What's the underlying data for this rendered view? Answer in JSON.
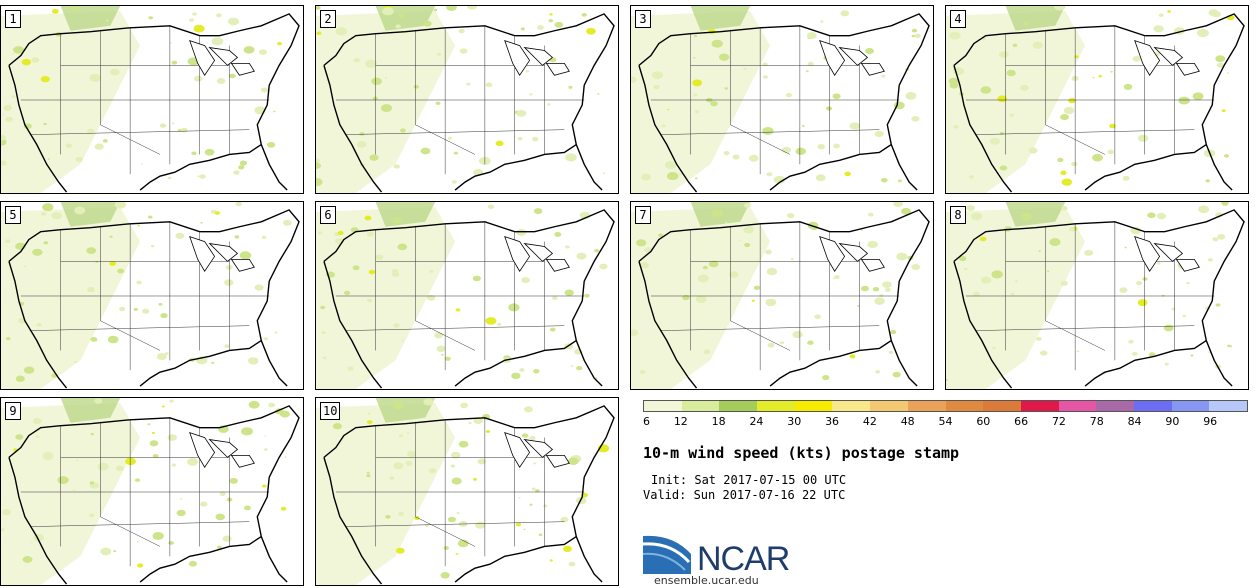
{
  "panels": [
    "1",
    "2",
    "3",
    "4",
    "5",
    "6",
    "7",
    "8",
    "9",
    "10"
  ],
  "colorbar": {
    "colors": [
      "#f1f6d9",
      "#d9ec9e",
      "#a3cc5b",
      "#e4ec2a",
      "#f7ec00",
      "#f8e88a",
      "#f2c870",
      "#e9a258",
      "#e08a40",
      "#dc7a3a",
      "#e0194a",
      "#e557a4",
      "#a86aa6",
      "#6b6ef3",
      "#8596f3",
      "#b5c8f8"
    ],
    "ticks": [
      "6",
      "12",
      "18",
      "24",
      "30",
      "36",
      "42",
      "48",
      "54",
      "60",
      "66",
      "72",
      "78",
      "84",
      "90",
      "96"
    ]
  },
  "title": "10-m wind speed (kts) postage stamp",
  "init_text": "Init: Sat 2017-07-15 00 UTC",
  "valid_text": "Valid: Sun 2017-07-16 22 UTC",
  "logo": {
    "text": "NCAR",
    "url": "ensemble.ucar.edu"
  }
}
